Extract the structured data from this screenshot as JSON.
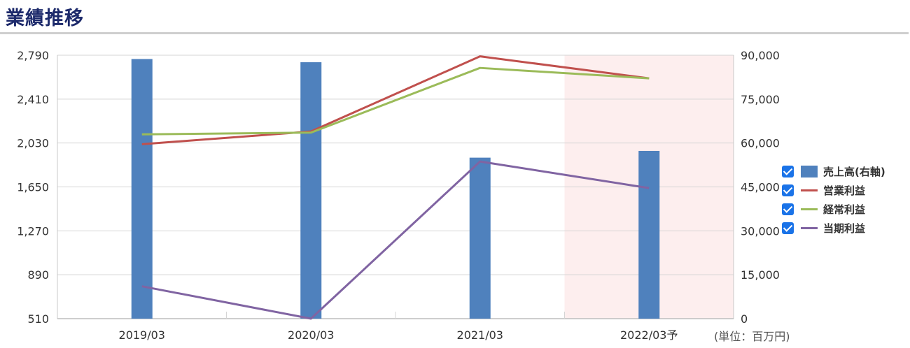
{
  "header": {
    "title": "業績推移"
  },
  "unit_note": "(単位：百万円)",
  "legend": {
    "items": [
      {
        "label": "売上高(右軸)",
        "color": "#4f81bd",
        "kind": "bar",
        "checked": true
      },
      {
        "label": "営業利益",
        "color": "#c0504d",
        "kind": "line",
        "checked": true
      },
      {
        "label": "経常利益",
        "color": "#9bbb59",
        "kind": "line",
        "checked": true
      },
      {
        "label": "当期利益",
        "color": "#8064a2",
        "kind": "line",
        "checked": true
      }
    ]
  },
  "chart_data": {
    "type": "bar",
    "categories": [
      "2019/03",
      "2020/03",
      "2021/03",
      "2022/03予"
    ],
    "left_axis": {
      "ticks": [
        "2,790",
        "2,410",
        "2,030",
        "1,650",
        "1,270",
        "890",
        "510"
      ],
      "ylim": [
        510,
        2790
      ]
    },
    "right_axis": {
      "ticks": [
        "90,000",
        "75,000",
        "60,000",
        "45,000",
        "30,000",
        "15,000",
        "0"
      ],
      "ylim": [
        0,
        90000
      ]
    },
    "forecast_shade": {
      "category": "2022/03予",
      "color": "#fdeeee"
    },
    "series": [
      {
        "name": "売上高(右軸)",
        "type": "bar",
        "axis": "right",
        "color": "#4f81bd",
        "values": [
          88700,
          87600,
          55000,
          57300
        ]
      },
      {
        "name": "営業利益",
        "type": "line",
        "axis": "left",
        "color": "#c0504d",
        "values": [
          2020,
          2130,
          2780,
          2590
        ]
      },
      {
        "name": "経常利益",
        "type": "line",
        "axis": "left",
        "color": "#9bbb59",
        "values": [
          2105,
          2120,
          2680,
          2590
        ]
      },
      {
        "name": "当期利益",
        "type": "line",
        "axis": "left",
        "color": "#8064a2",
        "values": [
          790,
          510,
          1870,
          1640
        ]
      }
    ],
    "grid": true,
    "legend_position": "right"
  }
}
